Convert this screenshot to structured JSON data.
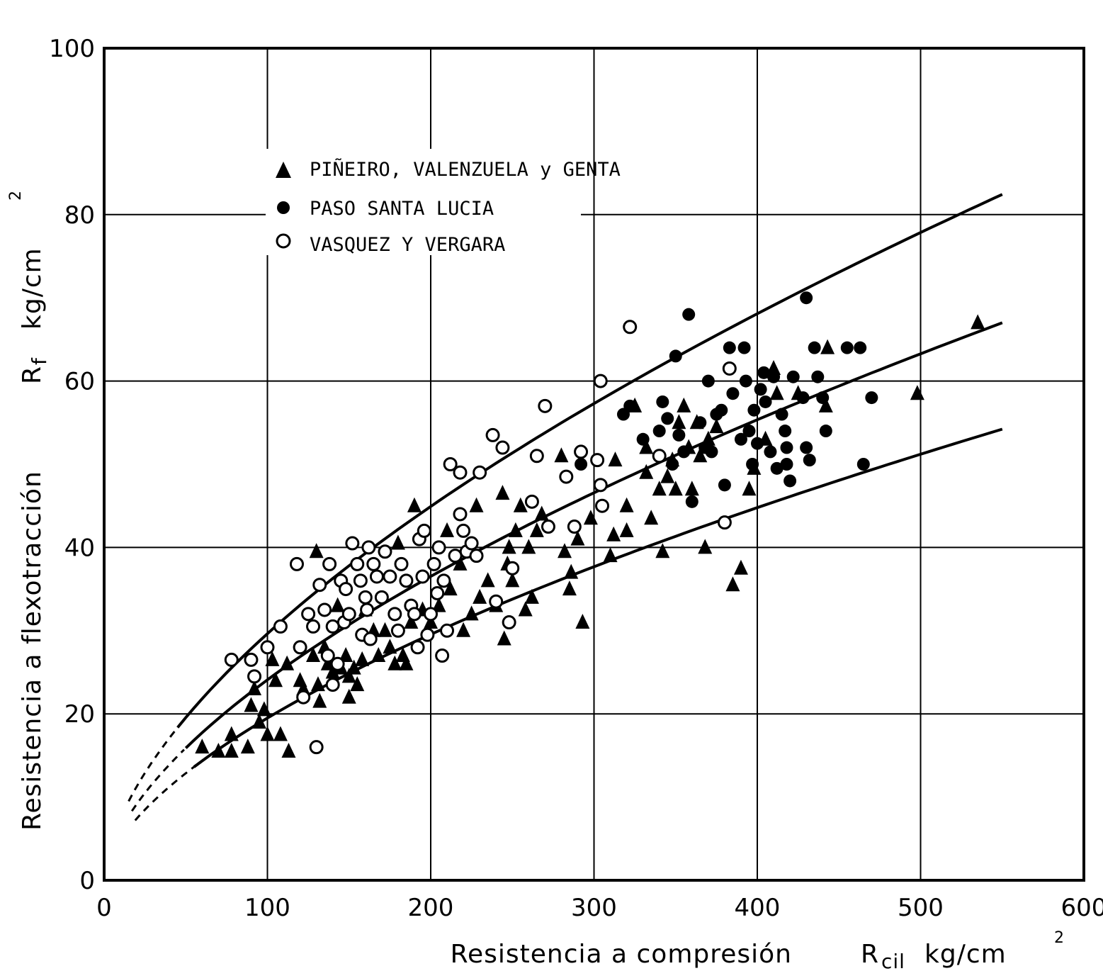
{
  "chart_data": {
    "type": "scatter",
    "title": "",
    "xlabel": "Resistencia a compresión",
    "xlabel_symbol": "R",
    "xlabel_subscript": "cil",
    "xlabel_unit": "kg/cm",
    "xlabel_unit_sup": "2",
    "ylabel": "Resistencia a flexotracción",
    "ylabel_symbol": "R",
    "ylabel_subscript": "f",
    "ylabel_unit": "kg/cm",
    "ylabel_unit_sup": "2",
    "xlim": [
      0,
      600
    ],
    "ylim": [
      0,
      100
    ],
    "x_ticks": [
      0,
      100,
      200,
      300,
      400,
      500,
      600
    ],
    "y_ticks": [
      0,
      20,
      40,
      60,
      80,
      100
    ],
    "grid": true,
    "legend_position": "top-left",
    "series": [
      {
        "name": "PIÑEIRO, VALENZUELA y GENTA",
        "marker": "filled-triangle",
        "points": [
          [
            60,
            16
          ],
          [
            70,
            15.5
          ],
          [
            78,
            17.5
          ],
          [
            78,
            15.5
          ],
          [
            88,
            16
          ],
          [
            90,
            21
          ],
          [
            92,
            23
          ],
          [
            95,
            19
          ],
          [
            98,
            20.5
          ],
          [
            100,
            17.5
          ],
          [
            103,
            26.5
          ],
          [
            105,
            24
          ],
          [
            108,
            17.5
          ],
          [
            112,
            26
          ],
          [
            113,
            15.5
          ],
          [
            120,
            24
          ],
          [
            122,
            23
          ],
          [
            128,
            27
          ],
          [
            130,
            39.5
          ],
          [
            131,
            23.5
          ],
          [
            132,
            21.5
          ],
          [
            135,
            28
          ],
          [
            137,
            26
          ],
          [
            140,
            25
          ],
          [
            143,
            33
          ],
          [
            145,
            25.5
          ],
          [
            148,
            27
          ],
          [
            150,
            22
          ],
          [
            150,
            24.5
          ],
          [
            153,
            25.5
          ],
          [
            155,
            23.5
          ],
          [
            158,
            26.5
          ],
          [
            160,
            32.5
          ],
          [
            165,
            30
          ],
          [
            168,
            27
          ],
          [
            172,
            30
          ],
          [
            175,
            28
          ],
          [
            178,
            26
          ],
          [
            180,
            40.5
          ],
          [
            183,
            27
          ],
          [
            185,
            26
          ],
          [
            188,
            31
          ],
          [
            190,
            45
          ],
          [
            195,
            32.5
          ],
          [
            200,
            31
          ],
          [
            205,
            33
          ],
          [
            210,
            42
          ],
          [
            212,
            35
          ],
          [
            218,
            38
          ],
          [
            220,
            30
          ],
          [
            225,
            32
          ],
          [
            228,
            45
          ],
          [
            230,
            34
          ],
          [
            235,
            36
          ],
          [
            240,
            33
          ],
          [
            244,
            46.5
          ],
          [
            245,
            29
          ],
          [
            247,
            38
          ],
          [
            248,
            40
          ],
          [
            250,
            36
          ],
          [
            252,
            42
          ],
          [
            255,
            45
          ],
          [
            258,
            32.5
          ],
          [
            260,
            40
          ],
          [
            262,
            34
          ],
          [
            265,
            42
          ],
          [
            268,
            44
          ],
          [
            280,
            51
          ],
          [
            282,
            39.5
          ],
          [
            285,
            35
          ],
          [
            286,
            37
          ],
          [
            290,
            41
          ],
          [
            293,
            31
          ],
          [
            298,
            43.5
          ],
          [
            310,
            39
          ],
          [
            312,
            41.5
          ],
          [
            313,
            50.5
          ],
          [
            320,
            42
          ],
          [
            320,
            45
          ],
          [
            325,
            57
          ],
          [
            332,
            52
          ],
          [
            332,
            49
          ],
          [
            335,
            43.5
          ],
          [
            340,
            47
          ],
          [
            342,
            39.5
          ],
          [
            345,
            48.5
          ],
          [
            348,
            50.5
          ],
          [
            350,
            47
          ],
          [
            352,
            55
          ],
          [
            355,
            57
          ],
          [
            358,
            52
          ],
          [
            360,
            47
          ],
          [
            363,
            55
          ],
          [
            365,
            51
          ],
          [
            368,
            40
          ],
          [
            370,
            53
          ],
          [
            375,
            54.5
          ],
          [
            385,
            35.5
          ],
          [
            390,
            37.5
          ],
          [
            395,
            47
          ],
          [
            398,
            49.5
          ],
          [
            405,
            53
          ],
          [
            410,
            61.5
          ],
          [
            412,
            58.5
          ],
          [
            425,
            58.5
          ],
          [
            442,
            57
          ],
          [
            443,
            64
          ],
          [
            498,
            58.5
          ],
          [
            535,
            67
          ]
        ]
      },
      {
        "name": "PASO SANTA LUCIA",
        "marker": "filled-circle",
        "points": [
          [
            292,
            50
          ],
          [
            318,
            56
          ],
          [
            322,
            57
          ],
          [
            330,
            53
          ],
          [
            340,
            54
          ],
          [
            342,
            57.5
          ],
          [
            345,
            55.5
          ],
          [
            348,
            50
          ],
          [
            350,
            63
          ],
          [
            352,
            53.5
          ],
          [
            355,
            51.5
          ],
          [
            358,
            68
          ],
          [
            360,
            45.5
          ],
          [
            365,
            55
          ],
          [
            368,
            52
          ],
          [
            370,
            60
          ],
          [
            372,
            51.5
          ],
          [
            375,
            56
          ],
          [
            378,
            56.5
          ],
          [
            380,
            47.5
          ],
          [
            383,
            64
          ],
          [
            385,
            58.5
          ],
          [
            390,
            53
          ],
          [
            392,
            64
          ],
          [
            393,
            60
          ],
          [
            395,
            54
          ],
          [
            397,
            50
          ],
          [
            398,
            56.5
          ],
          [
            400,
            52.5
          ],
          [
            402,
            59
          ],
          [
            404,
            61
          ],
          [
            405,
            57.5
          ],
          [
            408,
            51.5
          ],
          [
            410,
            60.5
          ],
          [
            412,
            49.5
          ],
          [
            415,
            56
          ],
          [
            417,
            54
          ],
          [
            418,
            52
          ],
          [
            418,
            50
          ],
          [
            420,
            48
          ],
          [
            422,
            60.5
          ],
          [
            428,
            58
          ],
          [
            430,
            70
          ],
          [
            430,
            52
          ],
          [
            432,
            50.5
          ],
          [
            435,
            64
          ],
          [
            437,
            60.5
          ],
          [
            440,
            58
          ],
          [
            442,
            54
          ],
          [
            455,
            64
          ],
          [
            463,
            64
          ],
          [
            465,
            50
          ],
          [
            470,
            58
          ]
        ]
      },
      {
        "name": "VASQUEZ Y VERGARA",
        "marker": "open-circle",
        "points": [
          [
            78,
            26.5
          ],
          [
            90,
            26.5
          ],
          [
            92,
            24.5
          ],
          [
            100,
            28
          ],
          [
            108,
            30.5
          ],
          [
            118,
            38
          ],
          [
            120,
            28
          ],
          [
            122,
            22
          ],
          [
            125,
            32
          ],
          [
            128,
            30.5
          ],
          [
            130,
            16
          ],
          [
            132,
            35.5
          ],
          [
            135,
            32.5
          ],
          [
            137,
            27
          ],
          [
            138,
            38
          ],
          [
            140,
            30.5
          ],
          [
            140,
            23.5
          ],
          [
            143,
            26
          ],
          [
            145,
            36
          ],
          [
            147,
            31
          ],
          [
            148,
            35
          ],
          [
            150,
            32
          ],
          [
            152,
            40.5
          ],
          [
            155,
            38
          ],
          [
            157,
            36
          ],
          [
            158,
            29.5
          ],
          [
            160,
            34
          ],
          [
            161,
            32.5
          ],
          [
            162,
            40
          ],
          [
            163,
            29
          ],
          [
            165,
            38
          ],
          [
            167,
            36.5
          ],
          [
            170,
            34
          ],
          [
            172,
            39.5
          ],
          [
            175,
            36.5
          ],
          [
            178,
            32
          ],
          [
            180,
            30
          ],
          [
            182,
            38
          ],
          [
            185,
            36
          ],
          [
            188,
            33
          ],
          [
            190,
            32
          ],
          [
            192,
            28
          ],
          [
            193,
            41
          ],
          [
            195,
            36.5
          ],
          [
            196,
            42
          ],
          [
            198,
            29.5
          ],
          [
            200,
            32
          ],
          [
            202,
            38
          ],
          [
            204,
            34.5
          ],
          [
            205,
            40
          ],
          [
            207,
            27
          ],
          [
            208,
            36
          ],
          [
            210,
            30
          ],
          [
            212,
            50
          ],
          [
            215,
            39
          ],
          [
            218,
            44
          ],
          [
            218,
            49
          ],
          [
            220,
            42
          ],
          [
            222,
            39.5
          ],
          [
            225,
            40.5
          ],
          [
            228,
            39
          ],
          [
            230,
            49
          ],
          [
            238,
            53.5
          ],
          [
            240,
            33.5
          ],
          [
            244,
            52
          ],
          [
            248,
            31
          ],
          [
            250,
            37.5
          ],
          [
            262,
            45.5
          ],
          [
            265,
            51
          ],
          [
            270,
            57
          ],
          [
            272,
            42.5
          ],
          [
            283,
            48.5
          ],
          [
            288,
            42.5
          ],
          [
            292,
            51.5
          ],
          [
            302,
            50.5
          ],
          [
            304,
            60
          ],
          [
            304,
            47.5
          ],
          [
            305,
            45
          ],
          [
            322,
            66.5
          ],
          [
            340,
            51
          ],
          [
            380,
            43
          ],
          [
            383,
            61.5
          ]
        ]
      }
    ],
    "fit_curves": [
      {
        "role": "upper",
        "exponent": 0.6,
        "coef": 1.87,
        "x_start": 45,
        "x_end": 550,
        "dash_start": 15
      },
      {
        "role": "middle",
        "exponent": 0.6,
        "coef": 1.52,
        "x_start": 50,
        "x_end": 550,
        "dash_start": 17
      },
      {
        "role": "lower",
        "exponent": 0.6,
        "coef": 1.23,
        "x_start": 55,
        "x_end": 550,
        "dash_start": 19
      }
    ]
  }
}
